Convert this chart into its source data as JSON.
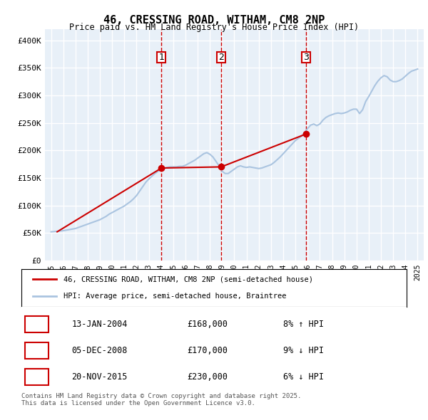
{
  "title": "46, CRESSING ROAD, WITHAM, CM8 2NP",
  "subtitle": "Price paid vs. HM Land Registry's House Price Index (HPI)",
  "ylabel_ticks": [
    "£0",
    "£50K",
    "£100K",
    "£150K",
    "£200K",
    "£250K",
    "£300K",
    "£350K",
    "£400K"
  ],
  "ytick_vals": [
    0,
    50000,
    100000,
    150000,
    200000,
    250000,
    300000,
    350000,
    400000
  ],
  "ylim": [
    0,
    420000
  ],
  "background_color": "#ffffff",
  "plot_bg_color": "#e8f0f8",
  "grid_color": "#ffffff",
  "hpi_color": "#aac4e0",
  "price_color": "#cc0000",
  "sale_marker_color": "#cc0000",
  "vline_color": "#cc0000",
  "legend_label_price": "46, CRESSING ROAD, WITHAM, CM8 2NP (semi-detached house)",
  "legend_label_hpi": "HPI: Average price, semi-detached house, Braintree",
  "sales": [
    {
      "num": 1,
      "date": "2004-01-13",
      "price": 168000,
      "hpi_pct": "8% ↑ HPI"
    },
    {
      "num": 2,
      "date": "2008-12-05",
      "price": 170000,
      "hpi_pct": "9% ↓ HPI"
    },
    {
      "num": 3,
      "date": "2015-11-20",
      "price": 230000,
      "hpi_pct": "6% ↓ HPI"
    }
  ],
  "footer": "Contains HM Land Registry data © Crown copyright and database right 2025.\nThis data is licensed under the Open Government Licence v3.0.",
  "hpi_data_x": [
    1995.0,
    1995.25,
    1995.5,
    1995.75,
    1996.0,
    1996.25,
    1996.5,
    1996.75,
    1997.0,
    1997.25,
    1997.5,
    1997.75,
    1998.0,
    1998.25,
    1998.5,
    1998.75,
    1999.0,
    1999.25,
    1999.5,
    1999.75,
    2000.0,
    2000.25,
    2000.5,
    2000.75,
    2001.0,
    2001.25,
    2001.5,
    2001.75,
    2002.0,
    2002.25,
    2002.5,
    2002.75,
    2003.0,
    2003.25,
    2003.5,
    2003.75,
    2004.0,
    2004.25,
    2004.5,
    2004.75,
    2005.0,
    2005.25,
    2005.5,
    2005.75,
    2006.0,
    2006.25,
    2006.5,
    2006.75,
    2007.0,
    2007.25,
    2007.5,
    2007.75,
    2008.0,
    2008.25,
    2008.5,
    2008.75,
    2009.0,
    2009.25,
    2009.5,
    2009.75,
    2010.0,
    2010.25,
    2010.5,
    2010.75,
    2011.0,
    2011.25,
    2011.5,
    2011.75,
    2012.0,
    2012.25,
    2012.5,
    2012.75,
    2013.0,
    2013.25,
    2013.5,
    2013.75,
    2014.0,
    2014.25,
    2014.5,
    2014.75,
    2015.0,
    2015.25,
    2015.5,
    2015.75,
    2016.0,
    2016.25,
    2016.5,
    2016.75,
    2017.0,
    2017.25,
    2017.5,
    2017.75,
    2018.0,
    2018.25,
    2018.5,
    2018.75,
    2019.0,
    2019.25,
    2019.5,
    2019.75,
    2020.0,
    2020.25,
    2020.5,
    2020.75,
    2021.0,
    2021.25,
    2021.5,
    2021.75,
    2022.0,
    2022.25,
    2022.5,
    2022.75,
    2023.0,
    2023.25,
    2023.5,
    2023.75,
    2024.0,
    2024.25,
    2024.5,
    2024.75,
    2025.0
  ],
  "hpi_data_y": [
    52000,
    52500,
    53000,
    53500,
    54000,
    55000,
    56000,
    57000,
    58000,
    60000,
    62000,
    64000,
    66000,
    68000,
    70000,
    72000,
    74000,
    77000,
    80000,
    84000,
    87000,
    90000,
    93000,
    96000,
    99000,
    103000,
    107000,
    112000,
    118000,
    126000,
    134000,
    142000,
    148000,
    153000,
    158000,
    162000,
    165000,
    167000,
    169000,
    170000,
    170000,
    170000,
    171000,
    171000,
    173000,
    176000,
    179000,
    182000,
    186000,
    190000,
    194000,
    196000,
    193000,
    188000,
    180000,
    172000,
    162000,
    158000,
    158000,
    162000,
    166000,
    170000,
    172000,
    170000,
    169000,
    170000,
    169000,
    168000,
    167000,
    168000,
    170000,
    172000,
    174000,
    178000,
    183000,
    188000,
    194000,
    200000,
    206000,
    212000,
    218000,
    222000,
    226000,
    232000,
    240000,
    246000,
    248000,
    245000,
    248000,
    255000,
    260000,
    263000,
    265000,
    267000,
    268000,
    267000,
    268000,
    270000,
    273000,
    275000,
    275000,
    267000,
    274000,
    289000,
    298000,
    308000,
    318000,
    326000,
    332000,
    336000,
    334000,
    328000,
    325000,
    325000,
    327000,
    330000,
    335000,
    340000,
    344000,
    346000,
    348000
  ],
  "price_data_x": [
    1995.5,
    2004.04,
    2008.92,
    2015.89
  ],
  "price_data_y": [
    52000,
    168000,
    170000,
    230000
  ]
}
